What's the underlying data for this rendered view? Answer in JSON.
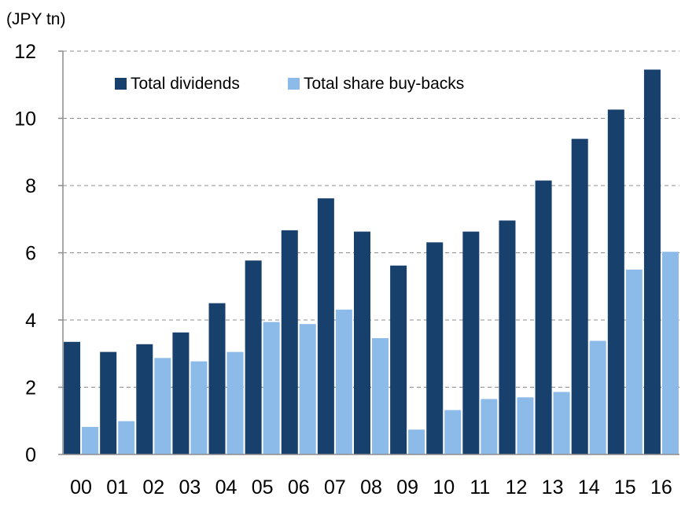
{
  "chart_data": {
    "type": "bar",
    "unit_label": "(JPY tn)",
    "title": "",
    "xlabel": "",
    "ylabel": "",
    "categories": [
      "00",
      "01",
      "02",
      "03",
      "04",
      "05",
      "06",
      "07",
      "08",
      "09",
      "10",
      "11",
      "12",
      "13",
      "14",
      "15",
      "16"
    ],
    "series": [
      {
        "name": "Total dividends",
        "color": "#17406d",
        "values": [
          3.35,
          3.05,
          3.28,
          3.63,
          4.5,
          5.77,
          6.67,
          7.62,
          6.63,
          5.62,
          6.31,
          6.63,
          6.96,
          8.15,
          9.39,
          10.26,
          11.45
        ]
      },
      {
        "name": "Total share buy-backs",
        "color": "#8dbbe9",
        "values": [
          0.82,
          0.99,
          2.87,
          2.77,
          3.05,
          3.94,
          3.88,
          4.31,
          3.46,
          0.74,
          1.32,
          1.65,
          1.7,
          1.86,
          3.38,
          5.5,
          6.03
        ]
      }
    ],
    "ylim": [
      0,
      12
    ],
    "yticks": [
      0,
      2,
      4,
      6,
      8,
      10,
      12
    ],
    "grid": true,
    "legend_position": "top-left"
  }
}
